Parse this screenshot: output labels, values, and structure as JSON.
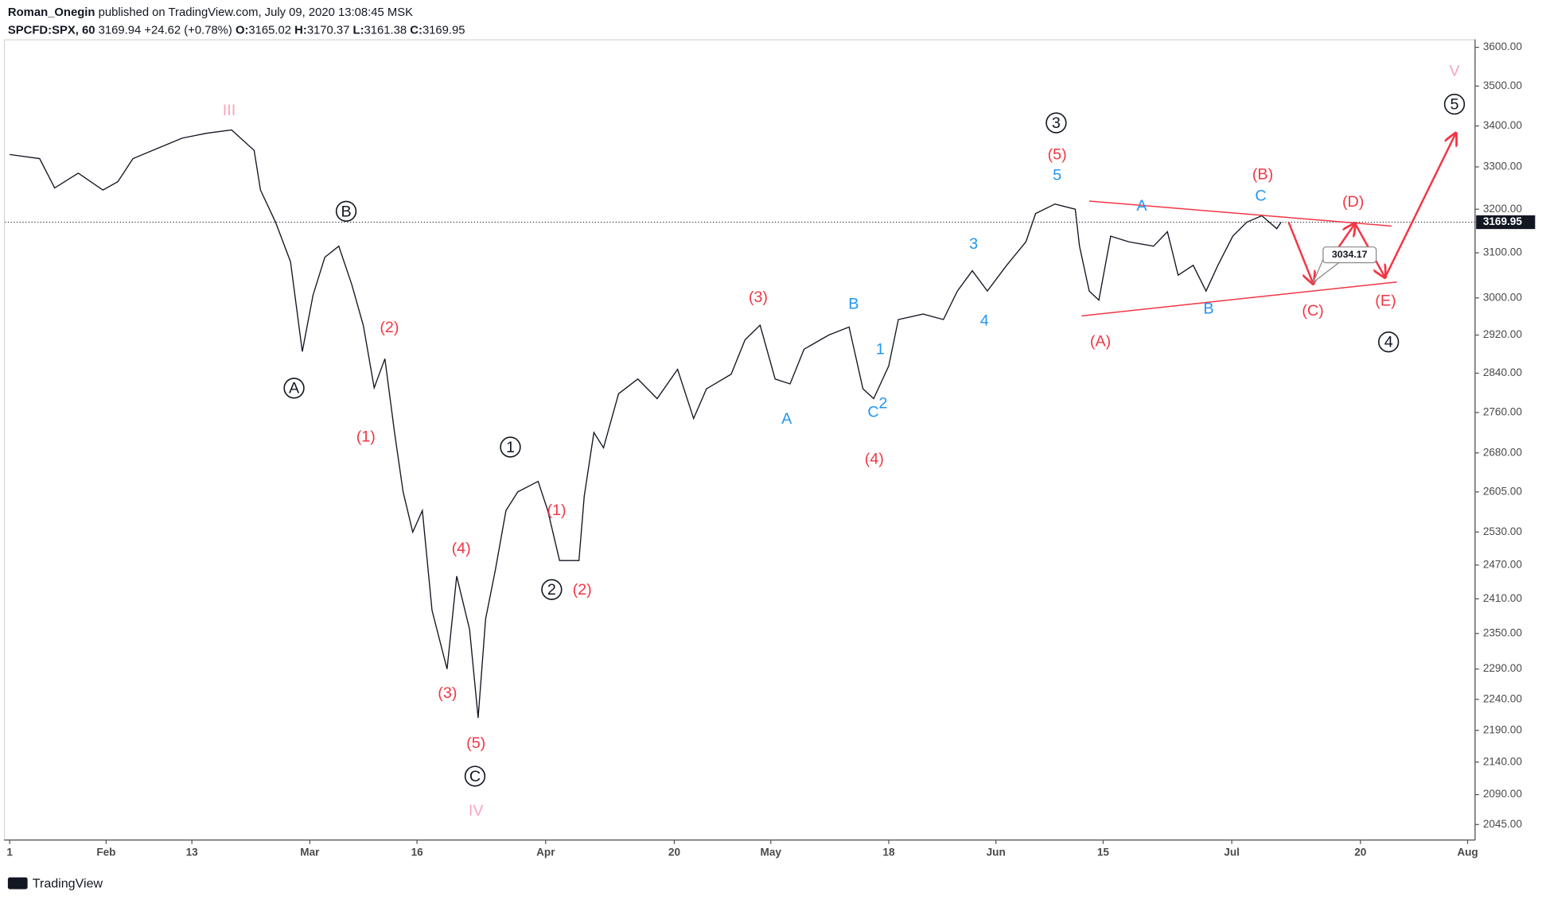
{
  "header": {
    "publisher": "Roman_Onegin",
    "published_text": "published on TradingView.com, July 09, 2020 13:08:45 MSK",
    "symbol": "SPCFD:SPX, 60",
    "last": 3169.94,
    "change": "+24.62 (+0.78%)",
    "open_label": "O:",
    "open": 3165.02,
    "high_label": "H:",
    "high": 3170.37,
    "low_label": "L:",
    "low": 3161.38,
    "close_label": "C:",
    "close": 3169.95
  },
  "brand": "TradingView",
  "chart_data": {
    "type": "line",
    "log_scale": true,
    "color": "#131722",
    "x": [
      0,
      2.8,
      4.2,
      6.4,
      8.7,
      10.1,
      11.5,
      13.8,
      16.1,
      18.4,
      20.7,
      22.8,
      23.4,
      24.8,
      26.2,
      27.3,
      28.3,
      29.4,
      30.7,
      31.9,
      33.0,
      34.0,
      35.0,
      35.9,
      36.7,
      37.6,
      38.5,
      39.4,
      40.8,
      41.7,
      42.9,
      43.7,
      44.4,
      45.3,
      46.3,
      47.4,
      49.3,
      50.2,
      51.3,
      53.1,
      53.6,
      54.5,
      55.4,
      56.8,
      58.6,
      60.4,
      62.3,
      63.8,
      65.0,
      67.3,
      68.6,
      70.0,
      71.4,
      72.8,
      74.1,
      76.4,
      78.3,
      79.6,
      80.6,
      82.0,
      82.9,
      85.2,
      87.1,
      88.4,
      89.8,
      91.2,
      93.0,
      94.8,
      95.7,
      97.5,
      99.4,
      99.8,
      100.7,
      101.6,
      102.7,
      104.4,
      106.7,
      108.0,
      109.0,
      110.4,
      111.6,
      112.7,
      114.1,
      115.4,
      116.8,
      118.2,
      118.6
    ],
    "values": [
      3330,
      3320,
      3250,
      3285,
      3245,
      3265,
      3320,
      3345,
      3370,
      3382,
      3390,
      3340,
      3245,
      3170,
      3080,
      2885,
      3006,
      3090,
      3115,
      3030,
      2940,
      2810,
      2870,
      2720,
      2605,
      2530,
      2570,
      2390,
      2290,
      2450,
      2357,
      2210,
      2375,
      2460,
      2570,
      2605,
      2625,
      2570,
      2478,
      2478,
      2597,
      2720,
      2690,
      2798,
      2828,
      2788,
      2848,
      2748,
      2808,
      2838,
      2910,
      2941,
      2828,
      2818,
      2890,
      2920,
      2937,
      2808,
      2788,
      2855,
      2953,
      2965,
      2953,
      3015,
      3060,
      3015,
      3072,
      3125,
      3190,
      3212,
      3200,
      3115,
      3015,
      2995,
      3138,
      3125,
      3115,
      3148,
      3050,
      3072,
      3015,
      3072,
      3138,
      3170,
      3185,
      3155,
      3170
    ],
    "xlim": [
      -0.9,
      136.7
    ],
    "ylim": [
      2022,
      3621
    ],
    "xticks": [
      {
        "value": 0,
        "label": "1"
      },
      {
        "value": 9,
        "label": "Feb"
      },
      {
        "value": 17,
        "label": "13"
      },
      {
        "value": 28,
        "label": "Mar"
      },
      {
        "value": 38,
        "label": "16"
      },
      {
        "value": 50,
        "label": "Apr"
      },
      {
        "value": 62,
        "label": "20"
      },
      {
        "value": 71,
        "label": "May"
      },
      {
        "value": 82,
        "label": "18"
      },
      {
        "value": 92,
        "label": "Jun"
      },
      {
        "value": 102,
        "label": "15"
      },
      {
        "value": 114,
        "label": "Jul"
      },
      {
        "value": 126,
        "label": "20"
      },
      {
        "value": 136,
        "label": "Aug"
      }
    ],
    "yticks": [
      {
        "value": 3600,
        "label": "3600.00"
      },
      {
        "value": 3500,
        "label": "3500.00"
      },
      {
        "value": 3400,
        "label": "3400.00"
      },
      {
        "value": 3300,
        "label": "3300.00"
      },
      {
        "value": 3200,
        "label": "3200.00"
      },
      {
        "value": 3100,
        "label": "3100.00"
      },
      {
        "value": 3000,
        "label": "3000.00"
      },
      {
        "value": 2920,
        "label": "2920.00"
      },
      {
        "value": 2840,
        "label": "2840.00"
      },
      {
        "value": 2760,
        "label": "2760.00"
      },
      {
        "value": 2680,
        "label": "2680.00"
      },
      {
        "value": 2605,
        "label": "2605.00"
      },
      {
        "value": 2530,
        "label": "2530.00"
      },
      {
        "value": 2470,
        "label": "2470.00"
      },
      {
        "value": 2410,
        "label": "2410.00"
      },
      {
        "value": 2350,
        "label": "2350.00"
      },
      {
        "value": 2290,
        "label": "2290.00"
      },
      {
        "value": 2240,
        "label": "2240.00"
      },
      {
        "value": 2190,
        "label": "2190.00"
      },
      {
        "value": 2140,
        "label": "2140.00"
      },
      {
        "value": 2090,
        "label": "2090.00"
      },
      {
        "value": 2045,
        "label": "2045.00"
      }
    ],
    "last_price": 3169.95,
    "callout": 3034.17,
    "drawing_color": "#f23645",
    "trendlines": [
      {
        "x": [
          100.7,
          128.9
        ],
        "values": [
          3219,
          3161
        ]
      },
      {
        "x": [
          100.0,
          129.4
        ],
        "values": [
          2961,
          3035
        ]
      }
    ],
    "projection": {
      "x": [
        119.3,
        121.6,
        125.5,
        128.3,
        134.9
      ],
      "values": [
        3170,
        3031,
        3167,
        3045,
        3382
      ]
    },
    "wave_labels": [
      {
        "text": "III",
        "color": "#f8a5bd"
      },
      {
        "text": "IV",
        "color": "#f8a5bd"
      },
      {
        "text": "V",
        "color": "#f8a5bd"
      },
      {
        "text": "B",
        "color": "#131722",
        "circled": true
      },
      {
        "text": "A",
        "color": "#131722",
        "circled": true
      },
      {
        "text": "1",
        "color": "#131722",
        "circled": true
      },
      {
        "text": "2",
        "color": "#131722",
        "circled": true
      },
      {
        "text": "C",
        "color": "#131722",
        "circled": true
      },
      {
        "text": "3",
        "color": "#131722",
        "circled": true
      },
      {
        "text": "4",
        "color": "#131722",
        "circled": true
      },
      {
        "text": "5",
        "color": "#131722",
        "circled": true
      },
      {
        "text": "(1)",
        "color": "#f23645"
      },
      {
        "text": "(2)",
        "color": "#f23645"
      },
      {
        "text": "(4)",
        "color": "#f23645"
      },
      {
        "text": "(3)",
        "color": "#f23645"
      },
      {
        "text": "(5)",
        "color": "#f23645"
      },
      {
        "text": "(1)",
        "color": "#f23645"
      },
      {
        "text": "(2)",
        "color": "#f23645"
      },
      {
        "text": "(3)",
        "color": "#f23645"
      },
      {
        "text": "(4)",
        "color": "#f23645"
      },
      {
        "text": "(5)",
        "color": "#f23645"
      },
      {
        "text": "(A)",
        "color": "#f23645"
      },
      {
        "text": "(B)",
        "color": "#f23645"
      },
      {
        "text": "(C)",
        "color": "#f23645"
      },
      {
        "text": "(D)",
        "color": "#f23645"
      },
      {
        "text": "(E)",
        "color": "#f23645"
      },
      {
        "text": "A",
        "color": "#2196f3"
      },
      {
        "text": "B",
        "color": "#2196f3"
      },
      {
        "text": "1",
        "color": "#2196f3"
      },
      {
        "text": "2",
        "color": "#2196f3"
      },
      {
        "text": "C",
        "color": "#2196f3"
      },
      {
        "text": "3",
        "color": "#2196f3"
      },
      {
        "text": "4",
        "color": "#2196f3"
      },
      {
        "text": "5",
        "color": "#2196f3"
      },
      {
        "text": "A",
        "color": "#2196f3"
      },
      {
        "text": "B",
        "color": "#2196f3"
      },
      {
        "text": "C",
        "color": "#2196f3"
      }
    ]
  }
}
